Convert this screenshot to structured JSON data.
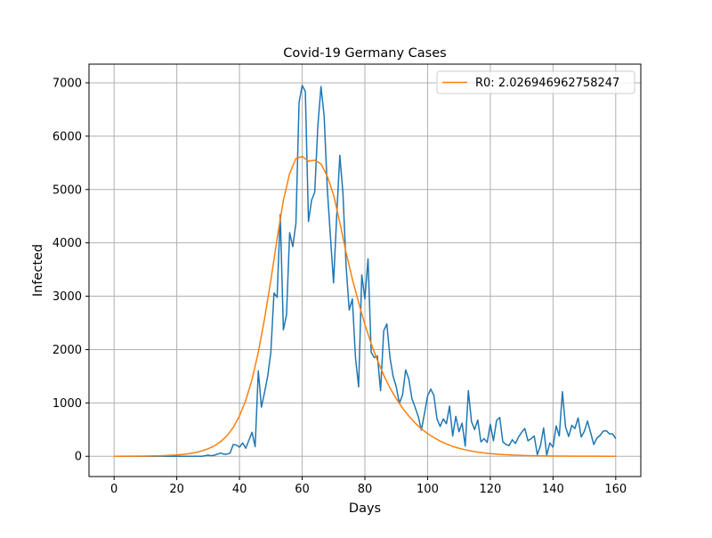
{
  "chart_data": {
    "type": "line",
    "title": "Covid-19 Germany Cases",
    "xlabel": "Days",
    "ylabel": "Infected",
    "xlim": [
      -8,
      168
    ],
    "ylim": [
      -380,
      7350
    ],
    "xticks": [
      0,
      20,
      40,
      60,
      80,
      100,
      120,
      140,
      160
    ],
    "yticks": [
      0,
      1000,
      2000,
      3000,
      4000,
      5000,
      6000,
      7000
    ],
    "grid": true,
    "legend_position": "top-right",
    "series": [
      {
        "name": "",
        "color": "#1f77b4",
        "x": [
          0,
          5,
          10,
          15,
          20,
          25,
          28,
          29,
          30,
          31,
          32,
          33,
          34,
          35,
          36,
          37,
          38,
          39,
          40,
          41,
          42,
          43,
          44,
          45,
          46,
          47,
          48,
          49,
          50,
          51,
          52,
          53,
          54,
          55,
          56,
          57,
          58,
          59,
          60,
          61,
          62,
          63,
          64,
          65,
          66,
          67,
          68,
          69,
          70,
          71,
          72,
          73,
          74,
          75,
          76,
          77,
          78,
          79,
          80,
          81,
          82,
          83,
          84,
          85,
          86,
          87,
          88,
          89,
          90,
          91,
          92,
          93,
          94,
          95,
          96,
          97,
          98,
          99,
          100,
          101,
          102,
          103,
          104,
          105,
          106,
          107,
          108,
          109,
          110,
          111,
          112,
          113,
          114,
          115,
          116,
          117,
          118,
          119,
          120,
          121,
          122,
          123,
          124,
          125,
          126,
          127,
          128,
          129,
          130,
          131,
          132,
          133,
          134,
          135,
          136,
          137,
          138,
          139,
          140,
          141,
          142,
          143,
          144,
          145,
          146,
          147,
          148,
          149,
          150,
          151,
          152,
          153,
          154,
          155,
          156,
          157,
          158,
          159,
          160
        ],
        "y": [
          0,
          0,
          0,
          0,
          0,
          0,
          0,
          10,
          20,
          10,
          20,
          40,
          60,
          40,
          40,
          60,
          220,
          210,
          170,
          250,
          150,
          300,
          450,
          180,
          1600,
          920,
          1200,
          1500,
          1950,
          3060,
          2980,
          4530,
          2370,
          2650,
          4190,
          3930,
          4370,
          6630,
          6950,
          6840,
          4400,
          4800,
          4950,
          6200,
          6930,
          6380,
          5020,
          4120,
          3250,
          4500,
          5640,
          4930,
          3570,
          2740,
          2950,
          1850,
          1300,
          3400,
          2950,
          3700,
          1950,
          1850,
          1880,
          1230,
          2350,
          2480,
          1850,
          1500,
          1300,
          990,
          1150,
          1620,
          1450,
          1080,
          920,
          750,
          490,
          800,
          1130,
          1260,
          1140,
          700,
          560,
          700,
          610,
          940,
          380,
          750,
          460,
          620,
          190,
          1230,
          650,
          500,
          680,
          270,
          330,
          260,
          600,
          290,
          670,
          730,
          270,
          220,
          200,
          310,
          240,
          360,
          450,
          520,
          290,
          330,
          380,
          30,
          200,
          530,
          20,
          250,
          170,
          570,
          380,
          1210,
          550,
          370,
          580,
          520,
          720,
          360,
          470,
          660,
          440,
          220,
          340,
          390,
          470,
          480,
          420,
          420,
          330
        ]
      },
      {
        "name": "R0: 2.026946962758247",
        "color": "#ff7f0e",
        "x": [
          0,
          5,
          10,
          15,
          20,
          22,
          24,
          26,
          28,
          30,
          32,
          34,
          36,
          38,
          40,
          42,
          44,
          46,
          48,
          50,
          52,
          54,
          56,
          58,
          60,
          62,
          64,
          66,
          68,
          70,
          72,
          74,
          76,
          78,
          80,
          82,
          84,
          86,
          88,
          90,
          92,
          94,
          96,
          98,
          100,
          102,
          104,
          106,
          108,
          110,
          112,
          114,
          116,
          118,
          120,
          122,
          124,
          126,
          128,
          130,
          132,
          134,
          136,
          138,
          140,
          142,
          144,
          146,
          148,
          150,
          152,
          154,
          156,
          158,
          160
        ],
        "y": [
          0,
          2,
          5,
          10,
          25,
          35,
          50,
          70,
          100,
          140,
          195,
          275,
          385,
          540,
          755,
          1050,
          1440,
          1950,
          2580,
          3300,
          4080,
          4800,
          5300,
          5580,
          5620,
          5530,
          5550,
          5480,
          5250,
          4900,
          4380,
          3820,
          3320,
          2880,
          2470,
          2110,
          1800,
          1520,
          1280,
          1080,
          905,
          755,
          625,
          515,
          425,
          350,
          285,
          230,
          185,
          150,
          122,
          98,
          78,
          62,
          50,
          40,
          32,
          26,
          21,
          17,
          13,
          10,
          8,
          6,
          5,
          4,
          3,
          2,
          2,
          1,
          1,
          1,
          0,
          0,
          0
        ]
      }
    ]
  }
}
